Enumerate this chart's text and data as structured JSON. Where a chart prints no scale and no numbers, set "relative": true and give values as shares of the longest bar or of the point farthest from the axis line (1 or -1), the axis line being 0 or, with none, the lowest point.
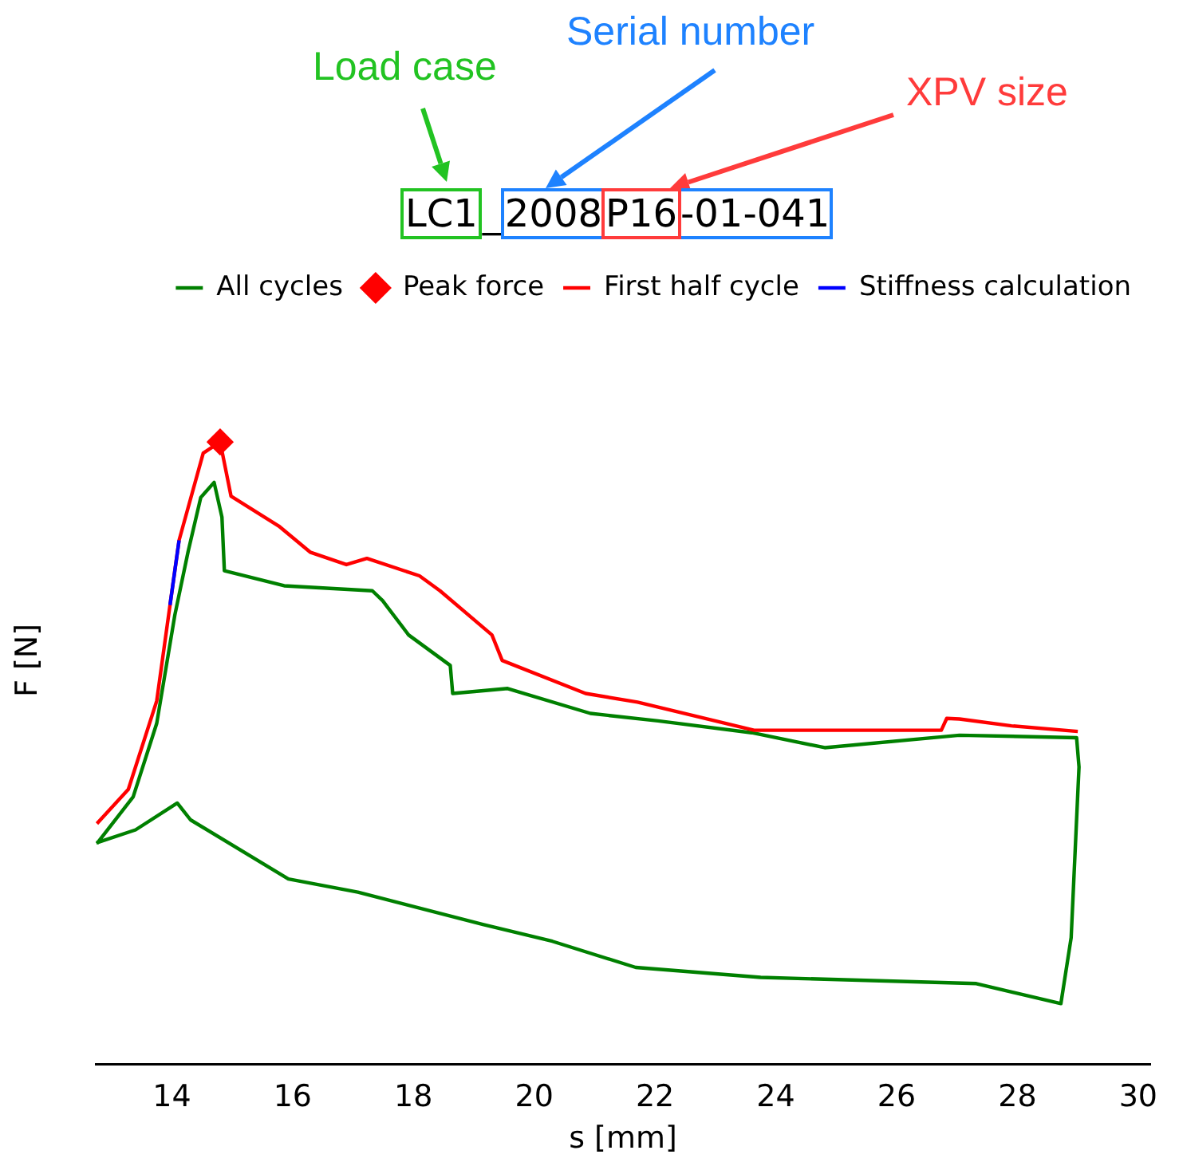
{
  "chart_data": {
    "type": "line",
    "title": "LC1_2008P16-01-041",
    "annotations": [
      "Load case",
      "Serial number",
      "XPV size"
    ],
    "xlabel": "s [mm]",
    "ylabel": "F [N]",
    "relative": true,
    "xlim": [
      12.74,
      30.2
    ],
    "xticks": [
      14,
      16,
      18,
      20,
      22,
      24,
      26,
      28,
      30
    ],
    "legend": "top right",
    "grid": false,
    "series": [
      {
        "name": "All cycles",
        "color": "#008000",
        "marker": "none",
        "x": [
          12.76,
          13.36,
          13.75,
          14.05,
          14.27,
          14.48,
          14.7,
          14.83,
          14.87,
          15.86,
          17.32,
          17.49,
          17.92,
          18.61,
          18.65,
          19.56,
          20.93,
          22.05,
          23.6,
          24.81,
          27.04,
          28.98,
          29.02,
          28.89,
          28.72,
          27.32,
          23.75,
          21.68,
          20.3,
          19.15,
          17.08,
          15.93,
          14.31,
          14.09,
          13.4,
          12.75
        ],
        "values": [
          0.355,
          0.43,
          0.548,
          0.722,
          0.824,
          0.911,
          0.935,
          0.879,
          0.793,
          0.769,
          0.761,
          0.745,
          0.69,
          0.641,
          0.596,
          0.604,
          0.564,
          0.552,
          0.533,
          0.509,
          0.529,
          0.525,
          0.478,
          0.204,
          0.098,
          0.13,
          0.14,
          0.156,
          0.198,
          0.225,
          0.277,
          0.298,
          0.393,
          0.42,
          0.377,
          0.356
        ]
      },
      {
        "name": "Peak force",
        "color": "#ff0000",
        "marker": "diamond",
        "x": [
          14.8
        ],
        "values": [
          1.0
        ]
      },
      {
        "name": "First half cycle",
        "color": "#ff0000",
        "marker": "none",
        "x": [
          12.76,
          13.28,
          13.75,
          13.97,
          14.12,
          14.52,
          14.8,
          14.98,
          15.77,
          16.29,
          16.89,
          17.23,
          18.1,
          18.44,
          19.3,
          19.47,
          20.85,
          21.71,
          23.64,
          26.74,
          26.83,
          27.04,
          27.9,
          29.0
        ],
        "values": [
          0.387,
          0.442,
          0.584,
          0.738,
          0.842,
          0.982,
          1.0,
          0.913,
          0.865,
          0.823,
          0.803,
          0.813,
          0.785,
          0.761,
          0.69,
          0.649,
          0.596,
          0.582,
          0.537,
          0.537,
          0.556,
          0.555,
          0.544,
          0.535
        ]
      },
      {
        "name": "Stiffness calculation",
        "color": "#0000ff",
        "marker": "none",
        "x": [
          13.97,
          14.12
        ],
        "values": [
          0.738,
          0.842
        ]
      }
    ]
  }
}
